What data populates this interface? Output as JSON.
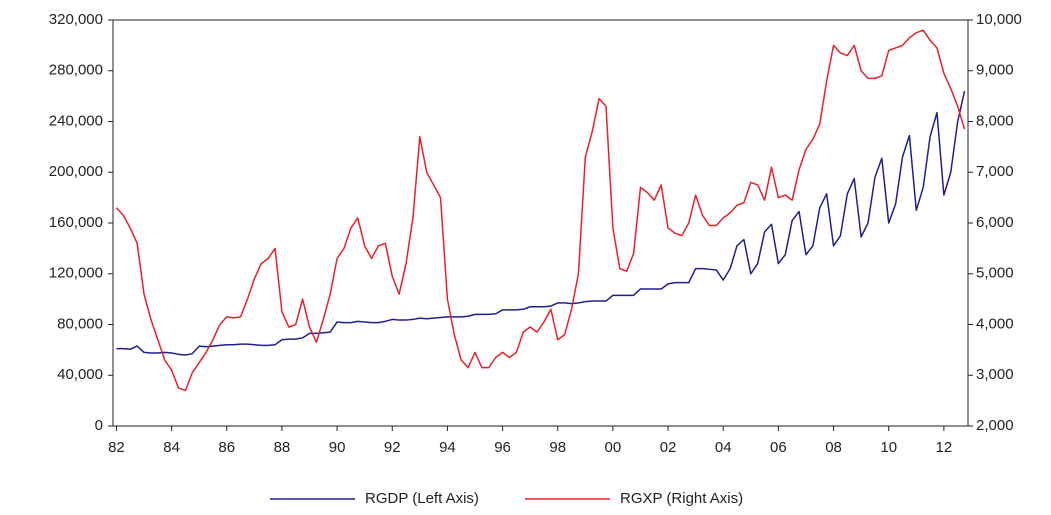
{
  "chart_data": {
    "type": "line",
    "categories": [
      "82",
      null,
      null,
      null,
      null,
      null,
      null,
      null,
      "84",
      null,
      null,
      null,
      null,
      null,
      null,
      null,
      "86",
      null,
      null,
      null,
      null,
      null,
      null,
      null,
      "88",
      null,
      null,
      null,
      null,
      null,
      null,
      null,
      "90",
      null,
      null,
      null,
      null,
      null,
      null,
      null,
      "92",
      null,
      null,
      null,
      null,
      null,
      null,
      null,
      "94",
      null,
      null,
      null,
      null,
      null,
      null,
      null,
      "96",
      null,
      null,
      null,
      null,
      null,
      null,
      null,
      "98",
      null,
      null,
      null,
      null,
      null,
      null,
      null,
      "00",
      null,
      null,
      null,
      null,
      null,
      null,
      null,
      "02",
      null,
      null,
      null,
      null,
      null,
      null,
      null,
      "04",
      null,
      null,
      null,
      null,
      null,
      null,
      null,
      "06",
      null,
      null,
      null,
      null,
      null,
      null,
      null,
      "08",
      null,
      null,
      null,
      null,
      null,
      null,
      null,
      "10",
      null,
      null,
      null,
      null,
      null,
      null,
      null,
      "12",
      null,
      null,
      null
    ],
    "series": [
      {
        "name": "RGDP (Left Axis)",
        "color": "#1f1f8c",
        "axis": "y",
        "values": [
          61000,
          61000,
          60500,
          63000,
          58000,
          57500,
          57500,
          58000,
          57500,
          56500,
          56000,
          57000,
          63000,
          62500,
          63000,
          63500,
          64000,
          64000,
          64500,
          64500,
          64000,
          63500,
          63500,
          64000,
          68000,
          68500,
          68500,
          69500,
          73000,
          73000,
          73500,
          74000,
          82000,
          81500,
          81500,
          82500,
          82000,
          81500,
          81500,
          82500,
          84000,
          83500,
          83500,
          84000,
          85000,
          84500,
          85000,
          85500,
          86000,
          86000,
          86000,
          86500,
          88000,
          88000,
          88000,
          88500,
          91500,
          91500,
          91500,
          92000,
          94000,
          94000,
          94000,
          94500,
          97000,
          97000,
          96500,
          97000,
          98000,
          98500,
          98500,
          98500,
          103000,
          103000,
          103000,
          103000,
          108000,
          108000,
          108000,
          108000,
          112000,
          113000,
          113000,
          113000,
          124000,
          124000,
          123500,
          123000,
          115000,
          124000,
          142000,
          147000,
          120000,
          128000,
          153000,
          159000,
          128000,
          135000,
          162000,
          169000,
          135000,
          142000,
          172000,
          183000,
          142000,
          150000,
          183000,
          195000,
          149000,
          160000,
          196000,
          211000,
          160000,
          175000,
          212000,
          229000,
          170000,
          188000,
          228000,
          247000,
          182000,
          200000,
          240000,
          264000
        ]
      },
      {
        "name": "RGXP (Right Axis)",
        "color": "#e8202a",
        "axis": "y2",
        "values": [
          6300,
          6150,
          5900,
          5600,
          4600,
          4100,
          3700,
          3300,
          3100,
          2750,
          2700,
          3050,
          3250,
          3450,
          3700,
          4000,
          4150,
          4130,
          4150,
          4500,
          4900,
          5200,
          5300,
          5500,
          4250,
          3950,
          4000,
          4500,
          3950,
          3650,
          4100,
          4600,
          5300,
          5500,
          5900,
          6100,
          5550,
          5300,
          5550,
          5600,
          4950,
          4600,
          5200,
          6100,
          7700,
          7000,
          6750,
          6500,
          4500,
          3800,
          3300,
          3150,
          3450,
          3150,
          3150,
          3350,
          3450,
          3350,
          3450,
          3850,
          3950,
          3850,
          4050,
          4300,
          3700,
          3800,
          4300,
          5000,
          7300,
          7800,
          8450,
          8300,
          5900,
          5100,
          5050,
          5400,
          6700,
          6600,
          6450,
          6750,
          5900,
          5800,
          5750,
          6000,
          6550,
          6150,
          5950,
          5950,
          6100,
          6200,
          6350,
          6400,
          6800,
          6750,
          6450,
          7100,
          6500,
          6550,
          6450,
          7050,
          7450,
          7650,
          7950,
          8800,
          9500,
          9350,
          9300,
          9500,
          9000,
          8850,
          8850,
          8900,
          9400,
          9450,
          9500,
          9650,
          9750,
          9800,
          9600,
          9450,
          8950,
          8650,
          8300,
          7850
        ]
      }
    ],
    "ylim": [
      0,
      320000
    ],
    "yticks": [
      0,
      {
        "value": 40000,
        "label": "40,000"
      },
      {
        "value": 80000,
        "label": "80,000"
      },
      {
        "value": 120000,
        "label": "120,000"
      },
      {
        "value": 160000,
        "label": "160,000"
      },
      {
        "value": 200000,
        "label": "200,000"
      },
      {
        "value": 240000,
        "label": "240,000"
      },
      {
        "value": 280000,
        "label": "280,000"
      },
      {
        "value": 320000,
        "label": "320,000"
      }
    ],
    "y2lim": [
      2000,
      10000
    ],
    "y2ticks": [
      {
        "value": 2000,
        "label": "2,000"
      },
      {
        "value": 3000,
        "label": "3,000"
      },
      {
        "value": 4000,
        "label": "4,000"
      },
      {
        "value": 5000,
        "label": "5,000"
      },
      {
        "value": 6000,
        "label": "6,000"
      },
      {
        "value": 7000,
        "label": "7,000"
      },
      {
        "value": 8000,
        "label": "8,000"
      },
      {
        "value": 9000,
        "label": "9,000"
      },
      {
        "value": 10000,
        "label": "10,000"
      }
    ],
    "legend": "bottom"
  }
}
